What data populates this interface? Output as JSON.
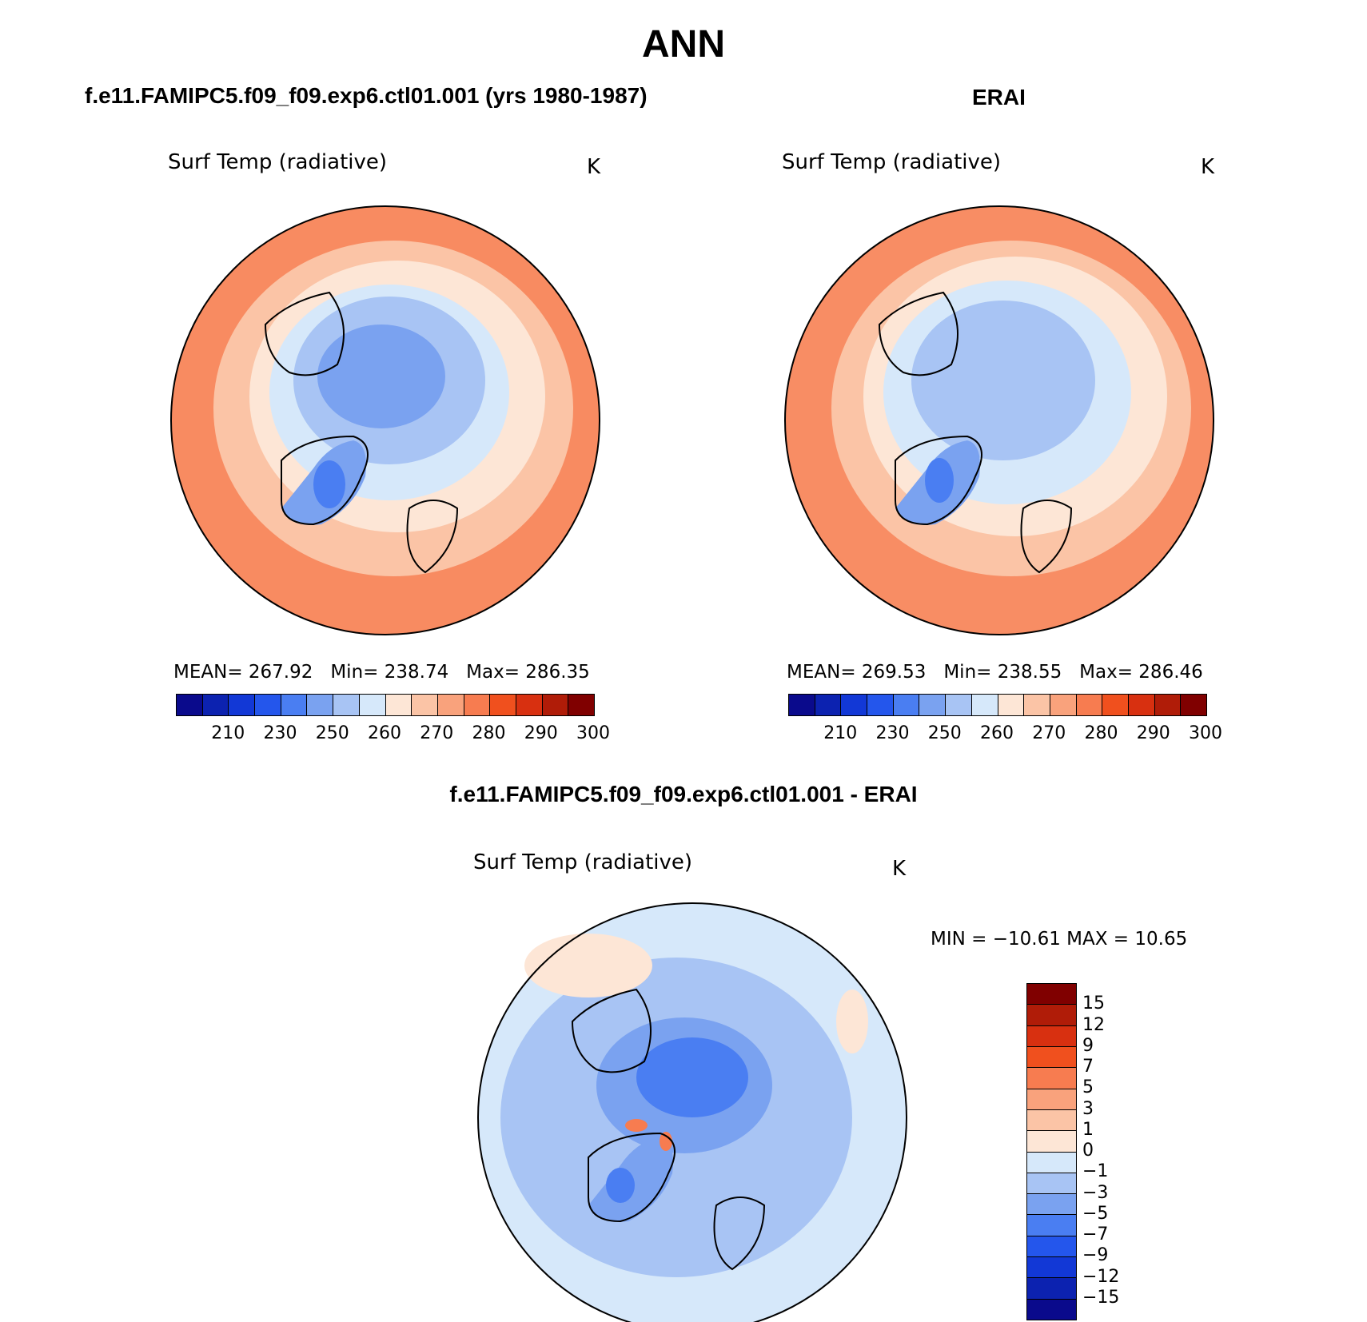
{
  "title": "ANN",
  "panels": [
    {
      "title": "f.e11.FAMIPC5.f09_f09.exp6.ctl01.001 (yrs 1980-1987)",
      "field": "Surf Temp (radiative)",
      "units": "K",
      "mean_label": "MEAN=",
      "mean": "267.92",
      "min_label": "Min=",
      "min": "238.74",
      "max_label": "Max=",
      "max": "286.35"
    },
    {
      "title": "ERAI",
      "field": "Surf Temp (radiative)",
      "units": "K",
      "mean_label": "MEAN=",
      "mean": "269.53",
      "min_label": "Min=",
      "min": "238.55",
      "max_label": "Max=",
      "max": "286.46"
    }
  ],
  "diff": {
    "title": "f.e11.FAMIPC5.f09_f09.exp6.ctl01.001 - ERAI",
    "field": "Surf Temp (radiative)",
    "units": "K",
    "minmax": "MIN = −10.61  MAX =   10.65"
  },
  "colorbar_abs": {
    "ticks": [
      "210",
      "230",
      "250",
      "260",
      "270",
      "280",
      "290",
      "300"
    ],
    "colors": [
      "#0a0a8c",
      "#0c22b0",
      "#1238d6",
      "#2456ec",
      "#4a7ef2",
      "#7aa2f0",
      "#a8c4f4",
      "#d6e8fa",
      "#fde6d6",
      "#fbc4a6",
      "#f9a27c",
      "#f77c50",
      "#f0501e",
      "#d83010",
      "#b01c08",
      "#800000"
    ]
  },
  "colorbar_diff": {
    "ticks": [
      "15",
      "12",
      "9",
      "7",
      "5",
      "3",
      "1",
      "0",
      "−1",
      "−3",
      "−5",
      "−7",
      "−9",
      "−12",
      "−15"
    ],
    "colors": [
      "#800000",
      "#b01c08",
      "#d83010",
      "#f0501e",
      "#f77c50",
      "#f9a27c",
      "#fbc4a6",
      "#fde6d6",
      "#d6e8fa",
      "#a8c4f4",
      "#7aa2f0",
      "#4a7ef2",
      "#2456ec",
      "#1238d6",
      "#0c22b0",
      "#0a0a8c"
    ]
  },
  "map_colors": {
    "warm_edge": "#f77c50",
    "warm": "#f9a27c",
    "mild": "#fbc4a6",
    "cool_light": "#fde6d6",
    "cold_light": "#d6e8fa",
    "cold": "#a8c4f4",
    "colder": "#7aa2f0",
    "coldest": "#4a7ef2",
    "diff_bg": "#d6e8fa",
    "diff_mid": "#a8c4f4",
    "diff_strong": "#7aa2f0",
    "diff_peak": "#4a7ef2"
  }
}
